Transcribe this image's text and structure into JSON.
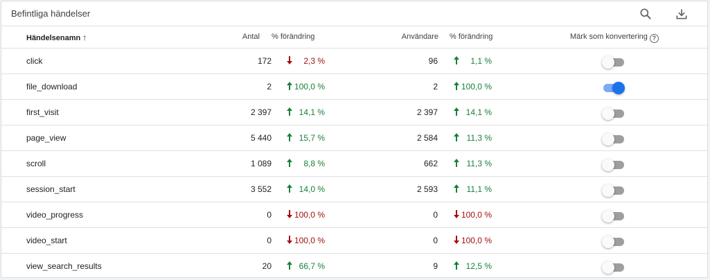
{
  "card": {
    "title": "Befintliga händelser",
    "icons": {
      "search": "search-icon",
      "download": "download-icon"
    }
  },
  "columns": {
    "name": "Händelsenamn",
    "sort_icon": "arrow-up-icon",
    "count": "Antal",
    "count_change": "% förändring",
    "users": "Användare",
    "users_change": "% förändring",
    "conversion": "Märk som konvertering",
    "help_glyph": "?"
  },
  "colors": {
    "up": "#188038",
    "down": "#a50e0e",
    "toggle_on": "#1a73e8"
  },
  "rows": [
    {
      "name": "click",
      "count": "172",
      "count_dir": "down",
      "count_change": "2,3 %",
      "users": "96",
      "users_dir": "up",
      "users_change": "1,1 %",
      "conversion": false
    },
    {
      "name": "file_download",
      "count": "2",
      "count_dir": "up",
      "count_change": "100,0 %",
      "users": "2",
      "users_dir": "up",
      "users_change": "100,0 %",
      "conversion": true
    },
    {
      "name": "first_visit",
      "count": "2 397",
      "count_dir": "up",
      "count_change": "14,1 %",
      "users": "2 397",
      "users_dir": "up",
      "users_change": "14,1 %",
      "conversion": false
    },
    {
      "name": "page_view",
      "count": "5 440",
      "count_dir": "up",
      "count_change": "15,7 %",
      "users": "2 584",
      "users_dir": "up",
      "users_change": "11,3 %",
      "conversion": false
    },
    {
      "name": "scroll",
      "count": "1 089",
      "count_dir": "up",
      "count_change": "8,8 %",
      "users": "662",
      "users_dir": "up",
      "users_change": "11,3 %",
      "conversion": false
    },
    {
      "name": "session_start",
      "count": "3 552",
      "count_dir": "up",
      "count_change": "14,0 %",
      "users": "2 593",
      "users_dir": "up",
      "users_change": "11,1 %",
      "conversion": false
    },
    {
      "name": "video_progress",
      "count": "0",
      "count_dir": "down",
      "count_change": "100,0 %",
      "users": "0",
      "users_dir": "down",
      "users_change": "100,0 %",
      "conversion": false
    },
    {
      "name": "video_start",
      "count": "0",
      "count_dir": "down",
      "count_change": "100,0 %",
      "users": "0",
      "users_dir": "down",
      "users_change": "100,0 %",
      "conversion": false
    },
    {
      "name": "view_search_results",
      "count": "20",
      "count_dir": "up",
      "count_change": "66,7 %",
      "users": "9",
      "users_dir": "up",
      "users_change": "12,5 %",
      "conversion": false
    }
  ]
}
